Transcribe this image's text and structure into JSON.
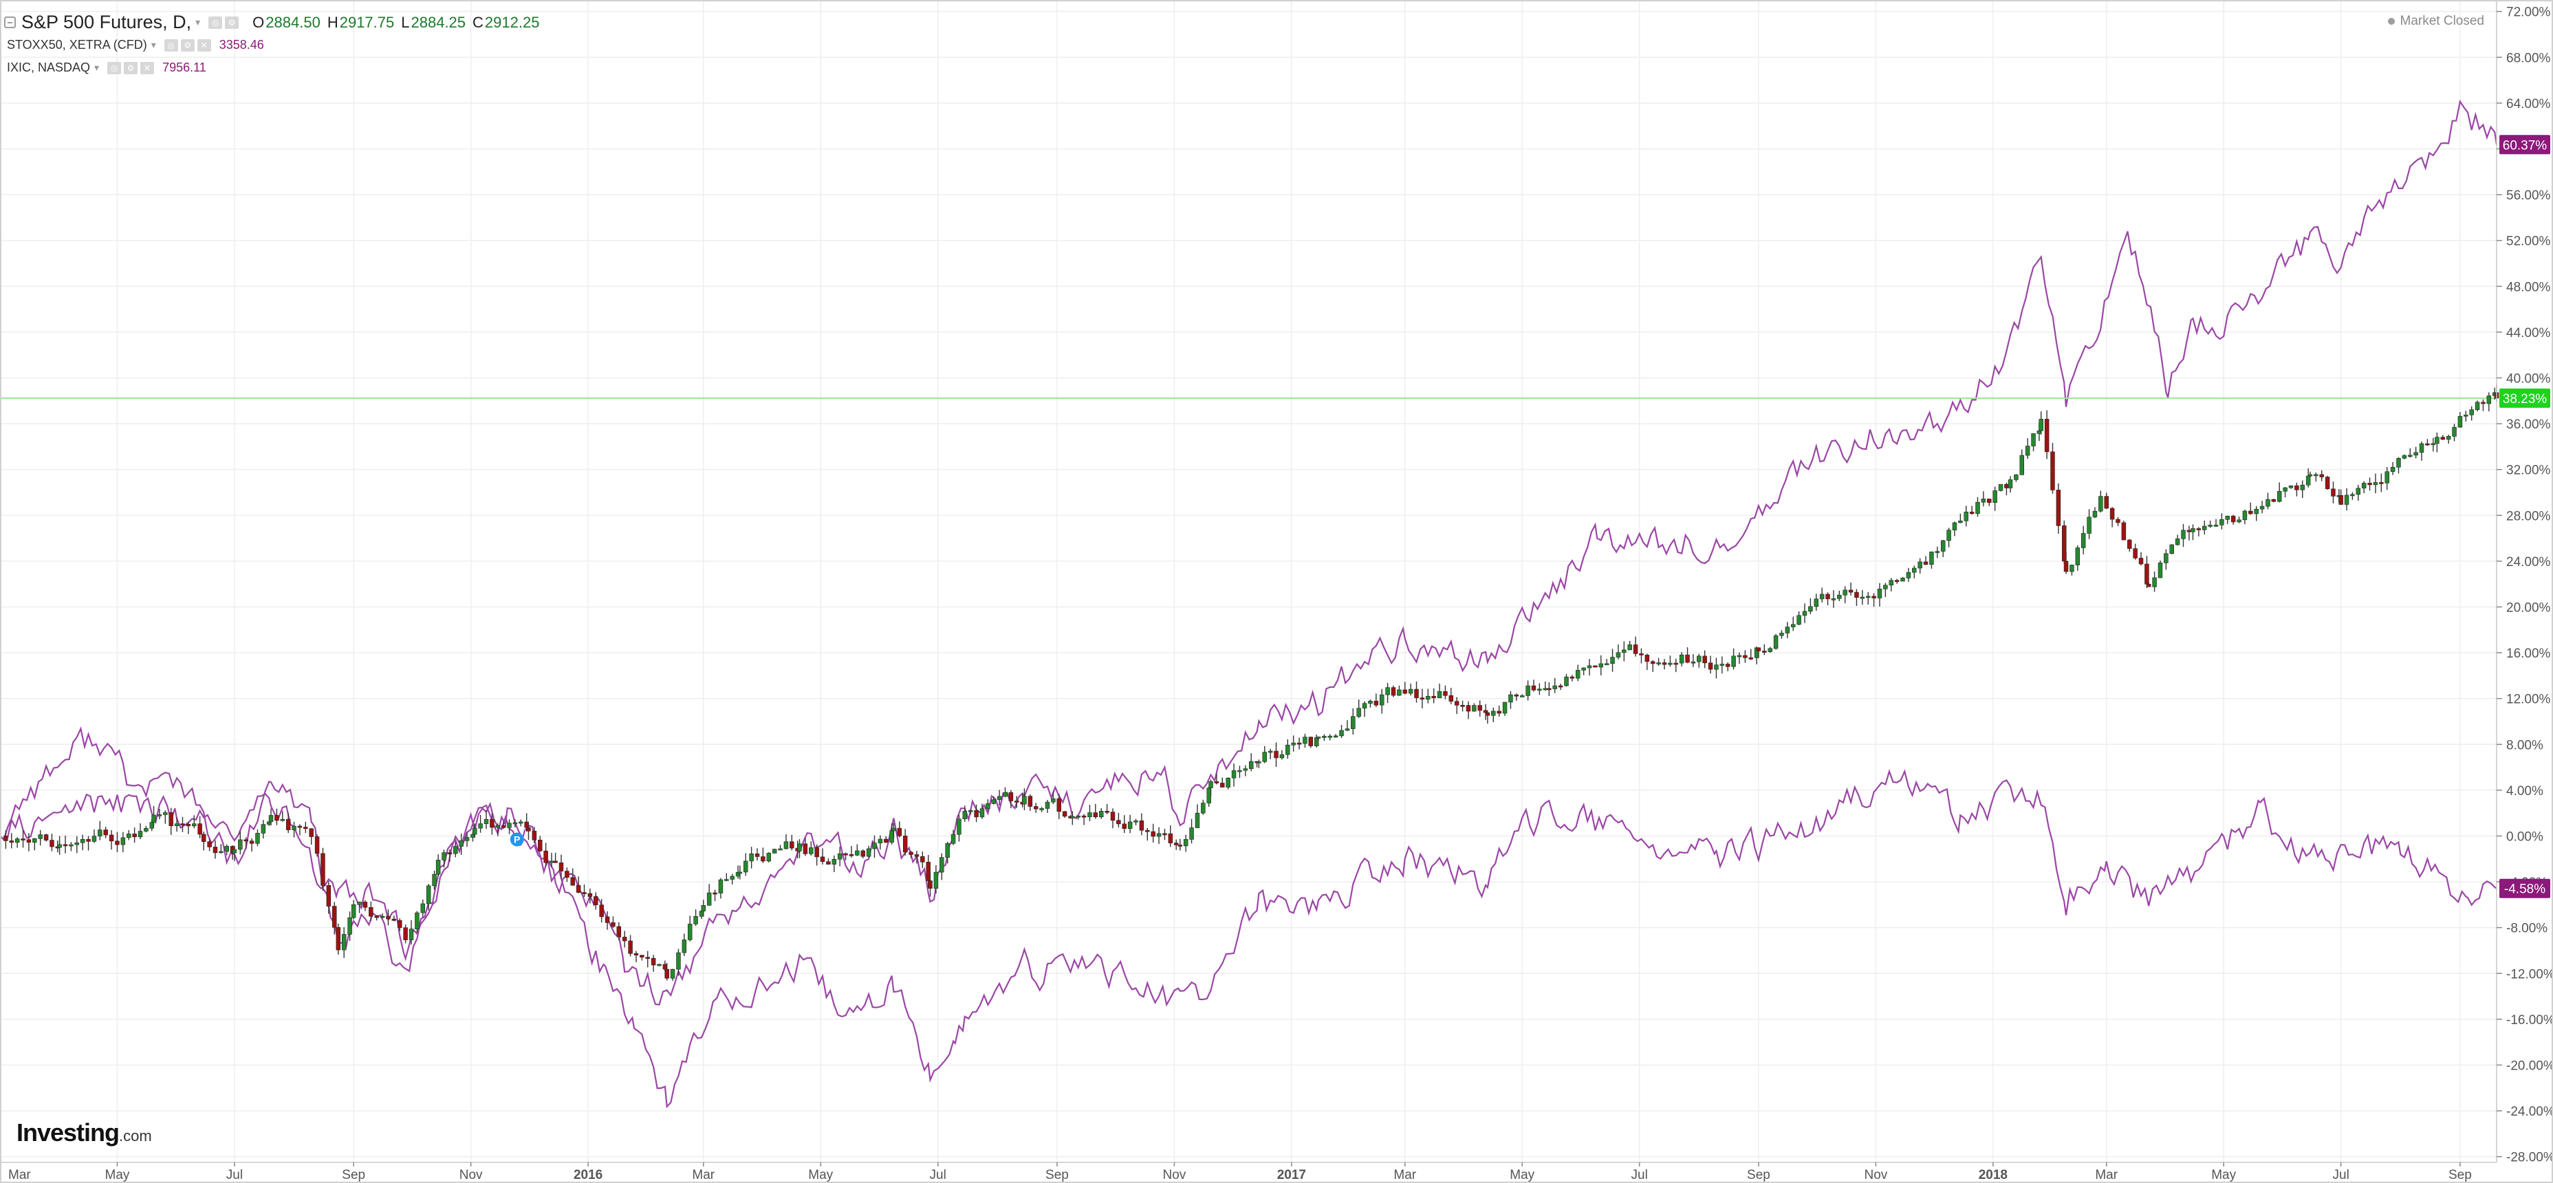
{
  "header": {
    "main_symbol": "S&P 500 Futures, D,",
    "ohlc": [
      {
        "label": "O",
        "value": "2884.50"
      },
      {
        "label": "H",
        "value": "2917.75"
      },
      {
        "label": "L",
        "value": "2884.25"
      },
      {
        "label": "C",
        "value": "2912.25"
      }
    ],
    "overlays": [
      {
        "symbol": "STOXX50, XETRA (CFD)",
        "last": "3358.46"
      },
      {
        "symbol": "IXIC, NASDAQ",
        "last": "7956.11"
      }
    ],
    "market_status": "Market Closed"
  },
  "logo": {
    "main": "Investing",
    "suffix": ".com"
  },
  "colors": {
    "up_candle": "#26882f",
    "down_candle": "#a01212",
    "overlay_line": "#9b46a6",
    "badge_purple": "#8b1a7a",
    "badge_green": "#1fd21f",
    "crosshair_line": "#97e897",
    "grid": "#eeeeee"
  },
  "chart_data": {
    "type": "line",
    "subtype": "percent-comparison with daily candlesticks for the main series",
    "x_tick_labels": [
      "Mar",
      "May",
      "Jul",
      "Sep",
      "Nov",
      "2016",
      "Mar",
      "May",
      "Jul",
      "Sep",
      "Nov",
      "2017",
      "Mar",
      "May",
      "Jul",
      "Sep",
      "Nov",
      "2018",
      "Mar",
      "May",
      "Jul",
      "Sep"
    ],
    "x_tick_dates": [
      "2015-03-01",
      "2015-05-01",
      "2015-07-01",
      "2015-09-01",
      "2015-11-01",
      "2016-01-01",
      "2016-03-01",
      "2016-05-01",
      "2016-07-01",
      "2016-09-01",
      "2016-11-01",
      "2017-01-01",
      "2017-03-01",
      "2017-05-01",
      "2017-07-01",
      "2017-09-01",
      "2017-11-01",
      "2018-01-01",
      "2018-03-01",
      "2018-05-01",
      "2018-07-01",
      "2018-09-01"
    ],
    "x_range": [
      "2015-03-01",
      "2018-09-20"
    ],
    "y_axis": {
      "side": "right",
      "unit": "%",
      "tick_labels": [
        "72.00%",
        "68.00%",
        "64.00%",
        "60.00%",
        "56.00%",
        "52.00%",
        "48.00%",
        "44.00%",
        "40.00%",
        "36.00%",
        "32.00%",
        "28.00%",
        "24.00%",
        "20.00%",
        "16.00%",
        "12.00%",
        "8.00%",
        "4.00%",
        "0.00%",
        "-4.00%",
        "-8.00%",
        "-12.00%",
        "-16.00%",
        "-20.00%",
        "-24.00%",
        "-28.00%"
      ],
      "ylim": [
        -28.5,
        73
      ]
    },
    "grid": true,
    "horizontal_line": {
      "y": 38.23,
      "label": "38.23%"
    },
    "last_value_badges": [
      {
        "y": 60.37,
        "label": "60.37%",
        "style": "purple"
      },
      {
        "y": 38.23,
        "label": "38.23%",
        "style": "green"
      },
      {
        "y": -4.58,
        "label": "-4.58%",
        "style": "purple"
      }
    ],
    "series": [
      {
        "name": "S&P 500 Futures, D,",
        "style": "candlestick",
        "points": [
          [
            "2015-03-01",
            0
          ],
          [
            "2015-04-01",
            -1
          ],
          [
            "2015-05-01",
            0
          ],
          [
            "2015-05-20",
            1.5
          ],
          [
            "2015-06-15",
            0
          ],
          [
            "2015-07-01",
            -1.5
          ],
          [
            "2015-07-20",
            1
          ],
          [
            "2015-08-10",
            0
          ],
          [
            "2015-08-24",
            -10
          ],
          [
            "2015-09-01",
            -6
          ],
          [
            "2015-09-28",
            -9
          ],
          [
            "2015-10-15",
            -2
          ],
          [
            "2015-11-03",
            1
          ],
          [
            "2015-12-01",
            0
          ],
          [
            "2015-12-15",
            -3
          ],
          [
            "2016-01-05",
            -6
          ],
          [
            "2016-01-20",
            -10
          ],
          [
            "2016-02-11",
            -12
          ],
          [
            "2016-03-01",
            -6
          ],
          [
            "2016-03-20",
            -2
          ],
          [
            "2016-04-20",
            -1
          ],
          [
            "2016-05-20",
            -2
          ],
          [
            "2016-06-08",
            0
          ],
          [
            "2016-06-27",
            -4
          ],
          [
            "2016-07-15",
            2
          ],
          [
            "2016-08-15",
            3
          ],
          [
            "2016-09-09",
            2
          ],
          [
            "2016-10-15",
            1
          ],
          [
            "2016-11-04",
            -1
          ],
          [
            "2016-11-20",
            4
          ],
          [
            "2016-12-15",
            7
          ],
          [
            "2017-01-15",
            8
          ],
          [
            "2017-03-01",
            13
          ],
          [
            "2017-04-13",
            11
          ],
          [
            "2017-05-15",
            14
          ],
          [
            "2017-06-20",
            16
          ],
          [
            "2017-08-10",
            15
          ],
          [
            "2017-09-01",
            16
          ],
          [
            "2017-10-01",
            20
          ],
          [
            "2017-11-15",
            22
          ],
          [
            "2017-12-15",
            27
          ],
          [
            "2018-01-10",
            31
          ],
          [
            "2018-01-26",
            36
          ],
          [
            "2018-02-08",
            22
          ],
          [
            "2018-02-26",
            30
          ],
          [
            "2018-03-23",
            22
          ],
          [
            "2018-04-15",
            27
          ],
          [
            "2018-05-15",
            28
          ],
          [
            "2018-06-15",
            31
          ],
          [
            "2018-07-01",
            29
          ],
          [
            "2018-07-25",
            32
          ],
          [
            "2018-08-20",
            35
          ],
          [
            "2018-09-20",
            38.23
          ]
        ]
      },
      {
        "name": "IXIC, NASDAQ",
        "style": "line",
        "points": [
          [
            "2015-03-01",
            0
          ],
          [
            "2015-03-15",
            4
          ],
          [
            "2015-04-20",
            9
          ],
          [
            "2015-05-10",
            4
          ],
          [
            "2015-06-01",
            5
          ],
          [
            "2015-07-01",
            -3
          ],
          [
            "2015-07-20",
            4
          ],
          [
            "2015-08-10",
            2
          ],
          [
            "2015-08-24",
            -10
          ],
          [
            "2015-09-15",
            -7
          ],
          [
            "2015-09-28",
            -13
          ],
          [
            "2015-10-20",
            -1
          ],
          [
            "2015-11-15",
            2
          ],
          [
            "2015-12-05",
            -1
          ],
          [
            "2015-12-20",
            -5
          ],
          [
            "2016-01-10",
            -12
          ],
          [
            "2016-01-25",
            -16
          ],
          [
            "2016-02-11",
            -23
          ],
          [
            "2016-03-10",
            -14
          ],
          [
            "2016-04-20",
            -12
          ],
          [
            "2016-05-20",
            -16
          ],
          [
            "2016-06-08",
            -13
          ],
          [
            "2016-06-27",
            -21
          ],
          [
            "2016-07-10",
            -17
          ],
          [
            "2016-07-15",
            -16
          ],
          [
            "2016-08-15",
            -12
          ],
          [
            "2016-09-22",
            -11
          ],
          [
            "2016-11-04",
            -15
          ],
          [
            "2016-11-20",
            -13
          ],
          [
            "2016-12-15",
            -6
          ],
          [
            "2017-01-15",
            -6
          ],
          [
            "2017-03-01",
            -2
          ],
          [
            "2017-04-13",
            -4
          ],
          [
            "2017-05-15",
            3
          ],
          [
            "2017-06-20",
            0
          ],
          [
            "2017-08-10",
            -2
          ],
          [
            "2017-09-01",
            -1
          ],
          [
            "2017-10-01",
            1
          ],
          [
            "2017-11-10",
            5
          ],
          [
            "2017-12-15",
            2
          ],
          [
            "2018-01-26",
            3
          ],
          [
            "2018-02-08",
            -5
          ],
          [
            "2018-03-01",
            -3
          ],
          [
            "2018-03-23",
            -6
          ],
          [
            "2018-05-01",
            -1
          ],
          [
            "2018-05-20",
            2
          ],
          [
            "2018-06-15",
            -2
          ],
          [
            "2018-07-01",
            -2
          ],
          [
            "2018-08-01",
            -1
          ],
          [
            "2018-09-05",
            -6
          ],
          [
            "2018-09-20",
            -4.58
          ]
        ]
      },
      {
        "name": "STOXX50, XETRA (CFD)",
        "style": "line",
        "points": [
          [
            "2015-03-01",
            0
          ],
          [
            "2015-04-15",
            3
          ],
          [
            "2015-06-01",
            2
          ],
          [
            "2015-07-05",
            1
          ],
          [
            "2015-07-20",
            4
          ],
          [
            "2015-08-24",
            -6
          ],
          [
            "2015-09-15",
            -5
          ],
          [
            "2015-09-28",
            -9
          ],
          [
            "2015-11-03",
            2
          ],
          [
            "2015-11-20",
            2
          ],
          [
            "2015-12-15",
            -3
          ],
          [
            "2016-01-05",
            -6
          ],
          [
            "2016-01-20",
            -11
          ],
          [
            "2016-02-11",
            -14
          ],
          [
            "2016-03-10",
            -7
          ],
          [
            "2016-04-20",
            -1
          ],
          [
            "2016-05-20",
            -2
          ],
          [
            "2016-06-08",
            0
          ],
          [
            "2016-06-27",
            -5
          ],
          [
            "2016-07-15",
            2
          ],
          [
            "2016-08-15",
            4
          ],
          [
            "2016-09-09",
            3
          ],
          [
            "2016-10-25",
            6
          ],
          [
            "2016-11-04",
            2
          ],
          [
            "2016-11-20",
            4
          ],
          [
            "2016-12-15",
            10
          ],
          [
            "2017-01-15",
            12
          ],
          [
            "2017-03-01",
            17
          ],
          [
            "2017-04-13",
            15
          ],
          [
            "2017-05-15",
            21
          ],
          [
            "2017-06-09",
            26
          ],
          [
            "2017-07-01",
            25
          ],
          [
            "2017-08-10",
            26
          ],
          [
            "2017-09-01",
            28
          ],
          [
            "2017-10-01",
            33
          ],
          [
            "2017-11-15",
            36
          ],
          [
            "2017-12-15",
            37
          ],
          [
            "2018-01-10",
            43
          ],
          [
            "2018-01-26",
            51
          ],
          [
            "2018-02-08",
            38
          ],
          [
            "2018-03-12",
            53
          ],
          [
            "2018-04-02",
            39
          ],
          [
            "2018-04-15",
            44
          ],
          [
            "2018-05-15",
            46
          ],
          [
            "2018-06-15",
            52
          ],
          [
            "2018-07-01",
            50
          ],
          [
            "2018-07-25",
            56
          ],
          [
            "2018-08-20",
            59
          ],
          [
            "2018-09-01",
            64
          ],
          [
            "2018-09-20",
            60.37
          ]
        ]
      }
    ]
  }
}
